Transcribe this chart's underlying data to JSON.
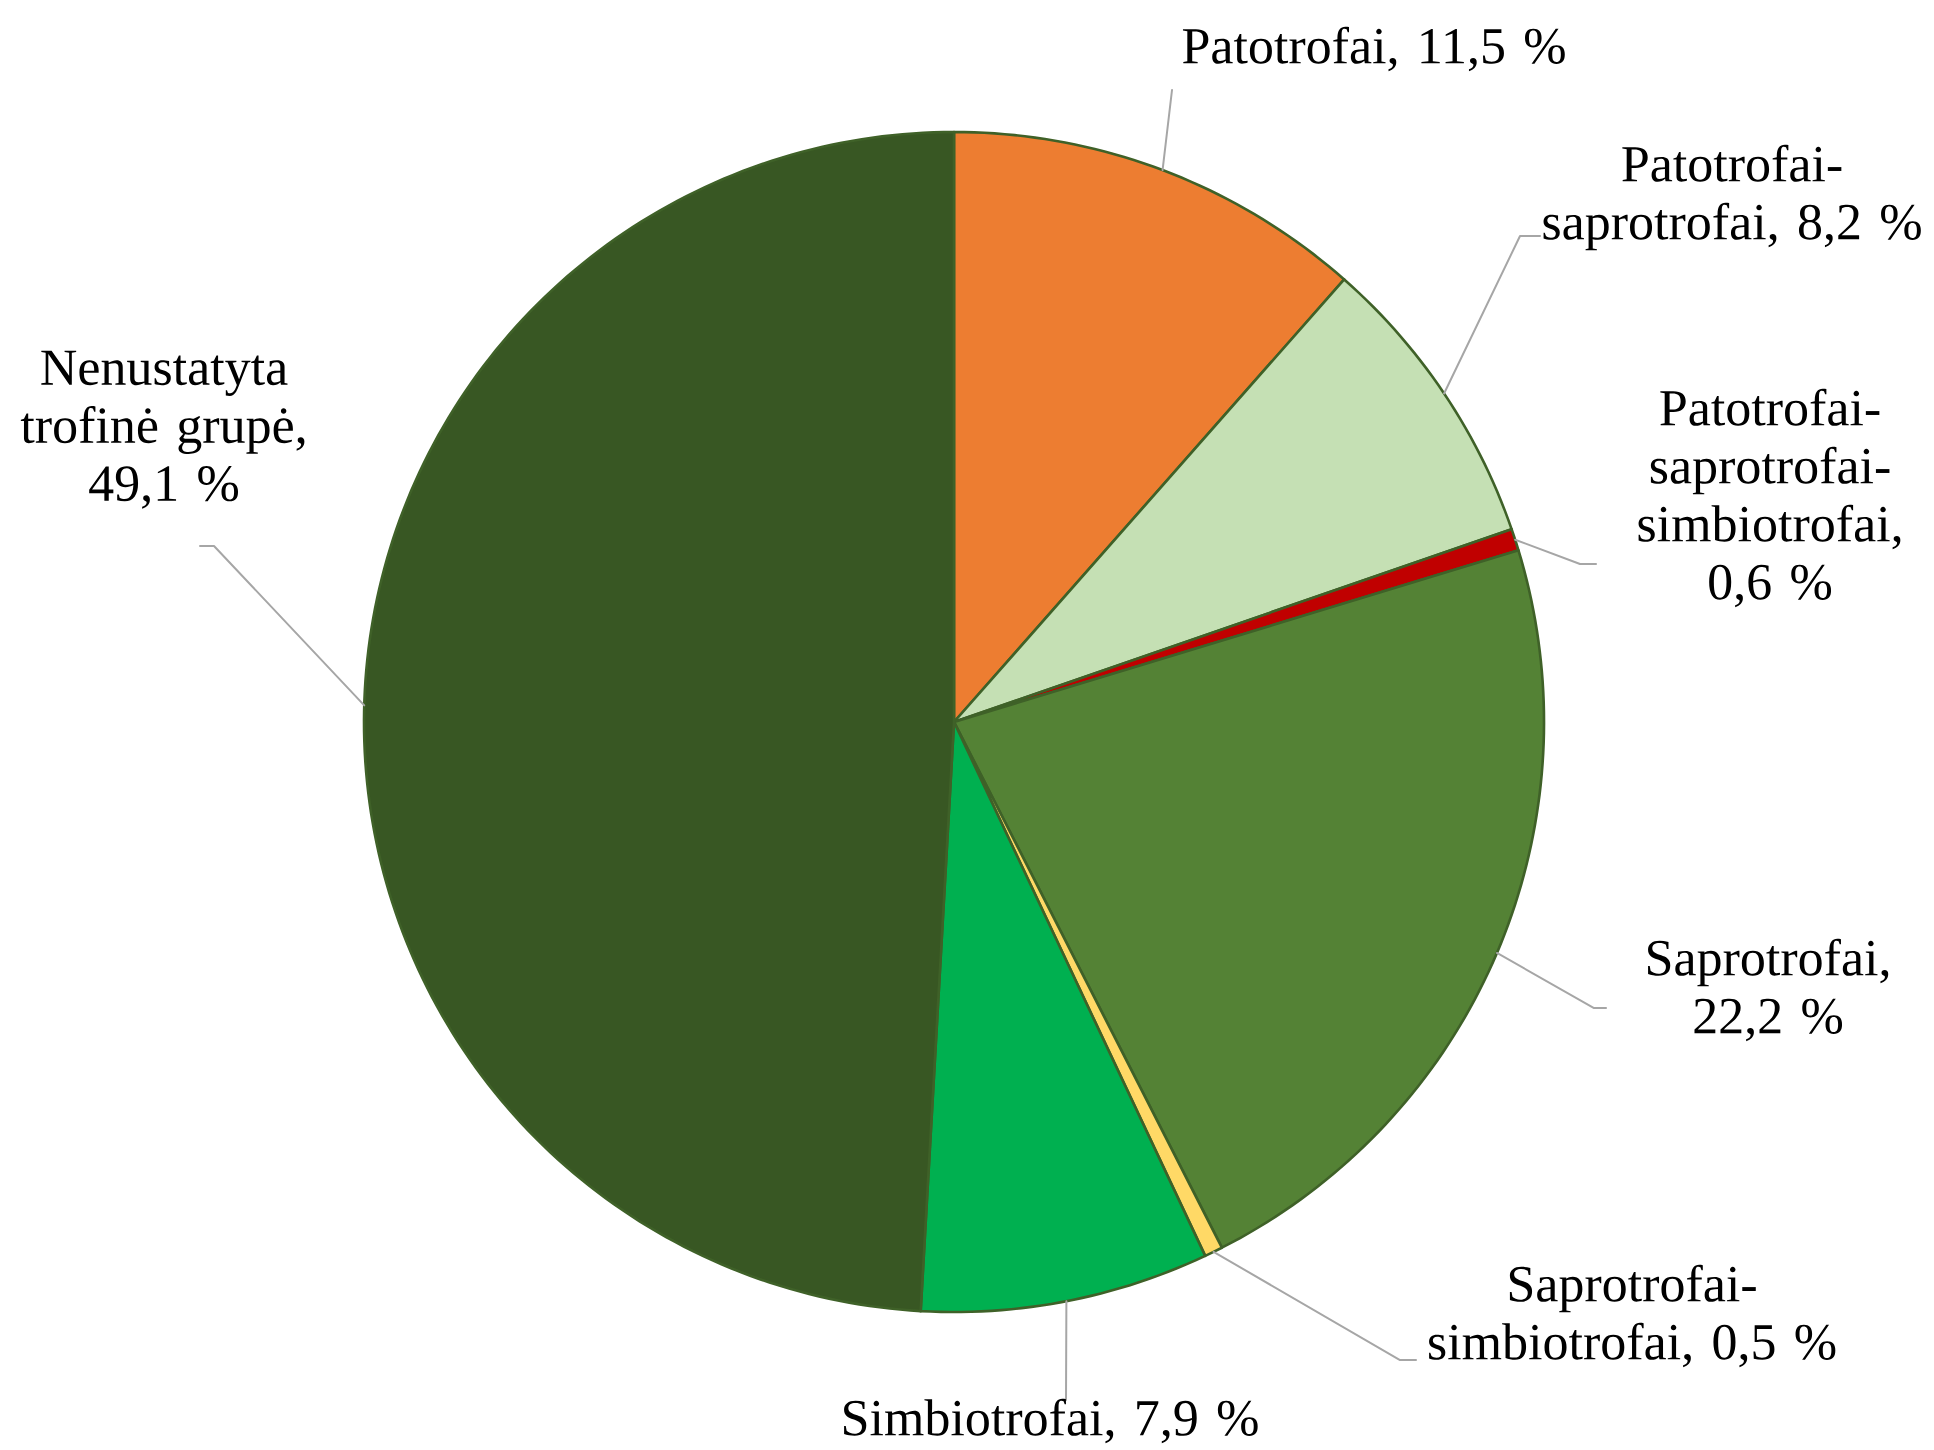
{
  "chart_data": {
    "type": "pie",
    "categories": [
      "Patotrofai, 11,5 %",
      "Patotrofai-saprotrofai, 8,2 %",
      "Patotrofai-saprotrofai-simbiotrofai, 0,6 %",
      "Saprotrofai, 22,2 %",
      "Saprotrofai-simbiotrofai, 0,5 %",
      "Simbiotrofai, 7,9 %",
      "Nenustatyta trofinė grupė, 49,1 %"
    ],
    "values": [
      11.5,
      8.2,
      0.6,
      22.2,
      0.5,
      7.9,
      49.1
    ],
    "colors": [
      "#ed7d31",
      "#c5e0b4",
      "#c00000",
      "#548235",
      "#ffd966",
      "#00b050",
      "#385723"
    ]
  }
}
